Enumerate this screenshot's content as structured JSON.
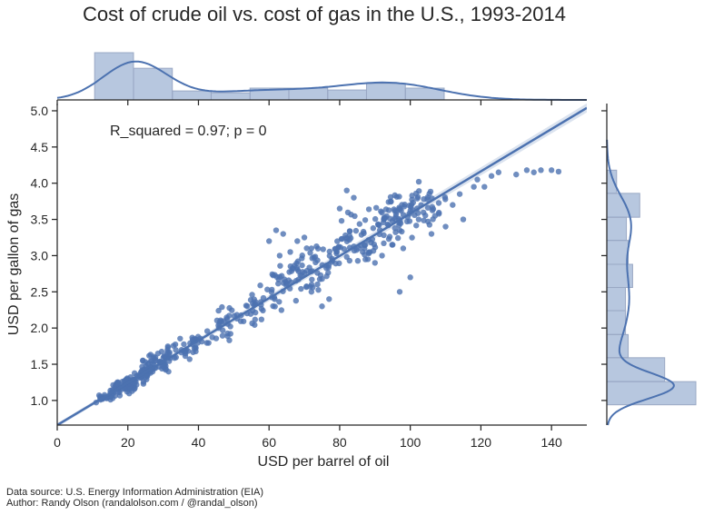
{
  "chart_data": {
    "type": "scatter",
    "title": "Cost of crude oil vs. cost of gas in the U.S., 1993-2014",
    "xlabel": "USD per barrel of oil",
    "ylabel": "USD per gallon of gas",
    "xlim": [
      0,
      150
    ],
    "ylim": [
      0.66,
      5.1
    ],
    "xticks": [
      0,
      20,
      40,
      60,
      80,
      100,
      120,
      140
    ],
    "yticks": [
      1.0,
      1.5,
      2.0,
      2.5,
      3.0,
      3.5,
      4.0,
      4.5,
      5.0
    ],
    "xtick_labels": [
      "0",
      "20",
      "40",
      "60",
      "80",
      "100",
      "120",
      "140"
    ],
    "ytick_labels": [
      "1.0",
      "1.5",
      "2.0",
      "2.5",
      "3.0",
      "3.5",
      "4.0",
      "4.5",
      "5.0"
    ],
    "grid": false,
    "annotation": "R_squared = 0.97; p = 0",
    "color": "#4c72b0",
    "regression": {
      "intercept": 0.66,
      "slope": 0.0292,
      "x_range": [
        0,
        150
      ]
    },
    "clusters": [
      {
        "x": [
          11,
          16
        ],
        "y": [
          0.95,
          1.12
        ],
        "n": 25
      },
      {
        "x": [
          15,
          22
        ],
        "y": [
          1.03,
          1.3
        ],
        "n": 60
      },
      {
        "x": [
          19,
          26
        ],
        "y": [
          1.15,
          1.45
        ],
        "n": 50
      },
      {
        "x": [
          24,
          32
        ],
        "y": [
          1.35,
          1.75
        ],
        "n": 60
      },
      {
        "x": [
          30,
          40
        ],
        "y": [
          1.45,
          1.85
        ],
        "n": 25
      },
      {
        "x": [
          35,
          50
        ],
        "y": [
          1.65,
          2.15
        ],
        "n": 30
      },
      {
        "x": [
          45,
          60
        ],
        "y": [
          1.95,
          2.45
        ],
        "n": 30
      },
      {
        "x": [
          55,
          65
        ],
        "y": [
          2.2,
          2.7
        ],
        "n": 25
      },
      {
        "x": [
          60,
          75
        ],
        "y": [
          2.35,
          3.2
        ],
        "n": 40
      },
      {
        "x": [
          65,
          80
        ],
        "y": [
          2.6,
          3.25
        ],
        "n": 30
      },
      {
        "x": [
          75,
          90
        ],
        "y": [
          2.75,
          3.3
        ],
        "n": 30
      },
      {
        "x": [
          80,
          95
        ],
        "y": [
          3.1,
          3.9
        ],
        "n": 45
      },
      {
        "x": [
          90,
          105
        ],
        "y": [
          3.2,
          4.05
        ],
        "n": 60
      },
      {
        "x": [
          95,
          110
        ],
        "y": [
          3.3,
          3.95
        ],
        "n": 30
      }
    ],
    "points": [
      [
        60,
        3.2
      ],
      [
        62,
        3.35
      ],
      [
        64,
        3.3
      ],
      [
        63,
        3.0
      ],
      [
        66,
        3.05
      ],
      [
        68,
        3.2
      ],
      [
        70,
        3.25
      ],
      [
        72,
        3.1
      ],
      [
        88,
        2.95
      ],
      [
        90,
        2.9
      ],
      [
        92,
        3.0
      ],
      [
        95,
        3.15
      ],
      [
        98,
        3.1
      ],
      [
        100,
        2.7
      ],
      [
        97,
        2.5
      ],
      [
        80,
        3.65
      ],
      [
        82,
        3.9
      ],
      [
        84,
        3.8
      ],
      [
        106,
        3.3
      ],
      [
        107,
        3.55
      ],
      [
        110,
        3.4
      ],
      [
        112,
        3.7
      ],
      [
        114,
        3.85
      ],
      [
        115,
        3.5
      ],
      [
        118,
        3.95
      ],
      [
        119,
        4.05
      ],
      [
        121,
        3.95
      ],
      [
        123,
        4.1
      ],
      [
        125,
        4.15
      ],
      [
        130,
        4.12
      ],
      [
        133,
        4.18
      ],
      [
        135,
        4.15
      ],
      [
        137,
        4.18
      ],
      [
        140,
        4.18
      ],
      [
        142,
        4.16
      ],
      [
        77,
        2.4
      ],
      [
        75,
        2.3
      ],
      [
        72,
        2.5
      ]
    ],
    "marginal_x": {
      "type": "histogram",
      "bin_edges": [
        10.6,
        21.6,
        32.6,
        43.6,
        54.6,
        65.6,
        76.6,
        87.6,
        98.6,
        109.6
      ],
      "relative_heights": [
        1.0,
        0.67,
        0.19,
        0.15,
        0.25,
        0.25,
        0.21,
        0.35,
        0.25
      ],
      "kde": "bimodal, peaks near 22 and 95"
    },
    "marginal_y": {
      "type": "histogram",
      "bin_edges": [
        0.94,
        1.26,
        1.59,
        1.91,
        2.24,
        2.56,
        2.88,
        3.21,
        3.53,
        3.86,
        4.18
      ],
      "relative_heights": [
        1.0,
        0.65,
        0.24,
        0.21,
        0.21,
        0.29,
        0.24,
        0.22,
        0.37,
        0.11
      ],
      "kde": "peak near 1.2, secondary near 3.5"
    }
  },
  "footer": {
    "source": "Data source: U.S. Energy Information Administration (EIA)",
    "author": "Author: Randy Olson (randalolson.com / @randal_olson)"
  }
}
